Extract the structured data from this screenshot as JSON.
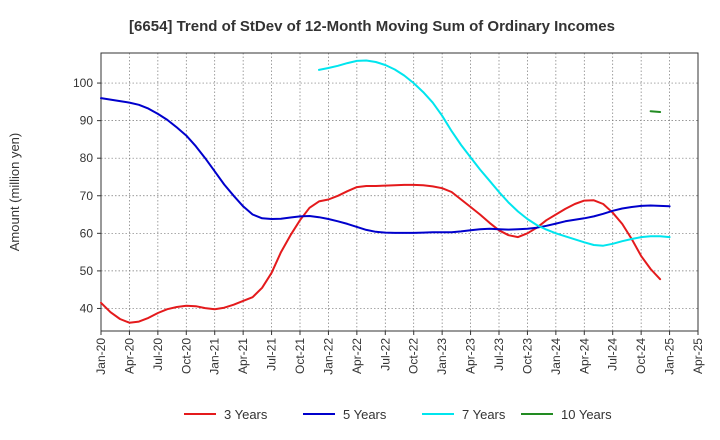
{
  "chart_data": {
    "type": "line",
    "title": "[6654]  Trend of StDev of 12-Month Moving Sum of Ordinary Incomes",
    "ylabel": "Amount (million yen)",
    "xlabel": "",
    "ylim": [
      34,
      108
    ],
    "yticks": [
      40,
      50,
      60,
      70,
      80,
      90,
      100
    ],
    "x_ticks": [
      "Jan-20",
      "Apr-20",
      "Jul-20",
      "Oct-20",
      "Jan-21",
      "Apr-21",
      "Jul-21",
      "Oct-21",
      "Jan-22",
      "Apr-22",
      "Jul-22",
      "Oct-22",
      "Jan-23",
      "Apr-23",
      "Jul-23",
      "Oct-23",
      "Jan-24",
      "Apr-24",
      "Jul-24",
      "Oct-24",
      "Jan-25",
      "Apr-25"
    ],
    "grid": true,
    "legend_position": "bottom",
    "series": [
      {
        "name": "3 Years",
        "color": "#e41a1c",
        "points": [
          [
            "Jan-20",
            41.5
          ],
          [
            "Feb-20",
            39.0
          ],
          [
            "Mar-20",
            37.2
          ],
          [
            "Apr-20",
            36.2
          ],
          [
            "May-20",
            36.5
          ],
          [
            "Jun-20",
            37.5
          ],
          [
            "Jul-20",
            38.8
          ],
          [
            "Aug-20",
            39.8
          ],
          [
            "Sep-20",
            40.4
          ],
          [
            "Oct-20",
            40.7
          ],
          [
            "Nov-20",
            40.6
          ],
          [
            "Dec-20",
            40.1
          ],
          [
            "Jan-21",
            39.8
          ],
          [
            "Feb-21",
            40.2
          ],
          [
            "Mar-21",
            41.0
          ],
          [
            "Apr-21",
            42.0
          ],
          [
            "May-21",
            43.0
          ],
          [
            "Jun-21",
            45.5
          ],
          [
            "Jul-21",
            49.5
          ],
          [
            "Aug-21",
            55.0
          ],
          [
            "Sep-21",
            59.5
          ],
          [
            "Oct-21",
            63.5
          ],
          [
            "Nov-21",
            66.8
          ],
          [
            "Dec-21",
            68.5
          ],
          [
            "Jan-22",
            69.0
          ],
          [
            "Feb-22",
            70.0
          ],
          [
            "Mar-22",
            71.2
          ],
          [
            "Apr-22",
            72.3
          ],
          [
            "May-22",
            72.6
          ],
          [
            "Jun-22",
            72.6
          ],
          [
            "Jul-22",
            72.7
          ],
          [
            "Aug-22",
            72.8
          ],
          [
            "Sep-22",
            72.9
          ],
          [
            "Oct-22",
            72.9
          ],
          [
            "Nov-22",
            72.8
          ],
          [
            "Dec-22",
            72.5
          ],
          [
            "Jan-23",
            72.0
          ],
          [
            "Feb-23",
            71.0
          ],
          [
            "Mar-23",
            69.0
          ],
          [
            "Apr-23",
            67.0
          ],
          [
            "May-23",
            65.0
          ],
          [
            "Jun-23",
            62.8
          ],
          [
            "Jul-23",
            60.8
          ],
          [
            "Aug-23",
            59.5
          ],
          [
            "Sep-23",
            59.0
          ],
          [
            "Oct-23",
            60.0
          ],
          [
            "Nov-23",
            61.5
          ],
          [
            "Dec-23",
            63.5
          ],
          [
            "Jan-24",
            65.0
          ],
          [
            "Feb-24",
            66.5
          ],
          [
            "Mar-24",
            67.8
          ],
          [
            "Apr-24",
            68.7
          ],
          [
            "May-24",
            68.8
          ],
          [
            "Jun-24",
            67.8
          ],
          [
            "Jul-24",
            65.5
          ],
          [
            "Aug-24",
            62.5
          ],
          [
            "Sep-24",
            58.5
          ],
          [
            "Oct-24",
            54.0
          ],
          [
            "Nov-24",
            50.5
          ],
          [
            "Dec-24",
            47.8
          ]
        ]
      },
      {
        "name": "5 Years",
        "color": "#0000cc",
        "points": [
          [
            "Jan-20",
            96.0
          ],
          [
            "Feb-20",
            95.6
          ],
          [
            "Mar-20",
            95.2
          ],
          [
            "Apr-20",
            94.8
          ],
          [
            "May-20",
            94.2
          ],
          [
            "Jun-20",
            93.2
          ],
          [
            "Jul-20",
            91.8
          ],
          [
            "Aug-20",
            90.2
          ],
          [
            "Sep-20",
            88.2
          ],
          [
            "Oct-20",
            86.0
          ],
          [
            "Nov-20",
            83.2
          ],
          [
            "Dec-20",
            80.0
          ],
          [
            "Jan-21",
            76.5
          ],
          [
            "Feb-21",
            73.0
          ],
          [
            "Mar-21",
            70.0
          ],
          [
            "Apr-21",
            67.2
          ],
          [
            "May-21",
            65.0
          ],
          [
            "Jun-21",
            64.0
          ],
          [
            "Jul-21",
            63.8
          ],
          [
            "Aug-21",
            63.9
          ],
          [
            "Sep-21",
            64.2
          ],
          [
            "Oct-21",
            64.5
          ],
          [
            "Nov-21",
            64.6
          ],
          [
            "Dec-21",
            64.3
          ],
          [
            "Jan-22",
            63.8
          ],
          [
            "Feb-22",
            63.2
          ],
          [
            "Mar-22",
            62.5
          ],
          [
            "Apr-22",
            61.7
          ],
          [
            "May-22",
            60.9
          ],
          [
            "Jun-22",
            60.4
          ],
          [
            "Jul-22",
            60.2
          ],
          [
            "Aug-22",
            60.1
          ],
          [
            "Sep-22",
            60.1
          ],
          [
            "Oct-22",
            60.1
          ],
          [
            "Nov-22",
            60.2
          ],
          [
            "Dec-22",
            60.3
          ],
          [
            "Jan-23",
            60.3
          ],
          [
            "Feb-23",
            60.3
          ],
          [
            "Mar-23",
            60.5
          ],
          [
            "Apr-23",
            60.8
          ],
          [
            "May-23",
            61.1
          ],
          [
            "Jun-23",
            61.2
          ],
          [
            "Jul-23",
            61.1
          ],
          [
            "Aug-23",
            61.0
          ],
          [
            "Sep-23",
            61.1
          ],
          [
            "Oct-23",
            61.2
          ],
          [
            "Nov-23",
            61.5
          ],
          [
            "Dec-23",
            62.0
          ],
          [
            "Jan-24",
            62.6
          ],
          [
            "Feb-24",
            63.2
          ],
          [
            "Mar-24",
            63.6
          ],
          [
            "Apr-24",
            64.0
          ],
          [
            "May-24",
            64.5
          ],
          [
            "Jun-24",
            65.2
          ],
          [
            "Jul-24",
            66.0
          ],
          [
            "Aug-24",
            66.6
          ],
          [
            "Sep-24",
            67.0
          ],
          [
            "Oct-24",
            67.3
          ],
          [
            "Nov-24",
            67.4
          ],
          [
            "Dec-24",
            67.3
          ],
          [
            "Jan-25",
            67.2
          ]
        ]
      },
      {
        "name": "7 Years",
        "color": "#00e5ee",
        "points": [
          [
            "Dec-21",
            103.5
          ],
          [
            "Jan-22",
            104.0
          ],
          [
            "Feb-22",
            104.6
          ],
          [
            "Mar-22",
            105.3
          ],
          [
            "Apr-22",
            105.9
          ],
          [
            "May-22",
            106.0
          ],
          [
            "Jun-22",
            105.6
          ],
          [
            "Jul-22",
            104.8
          ],
          [
            "Aug-22",
            103.6
          ],
          [
            "Sep-22",
            102.0
          ],
          [
            "Oct-22",
            100.0
          ],
          [
            "Nov-22",
            97.6
          ],
          [
            "Dec-22",
            94.8
          ],
          [
            "Jan-23",
            91.3
          ],
          [
            "Feb-23",
            87.2
          ],
          [
            "Mar-23",
            83.5
          ],
          [
            "Apr-23",
            80.2
          ],
          [
            "May-23",
            77.0
          ],
          [
            "Jun-23",
            74.0
          ],
          [
            "Jul-23",
            71.0
          ],
          [
            "Aug-23",
            68.2
          ],
          [
            "Sep-23",
            65.8
          ],
          [
            "Oct-23",
            63.8
          ],
          [
            "Nov-23",
            62.2
          ],
          [
            "Dec-23",
            61.0
          ],
          [
            "Jan-24",
            60.0
          ],
          [
            "Feb-24",
            59.2
          ],
          [
            "Mar-24",
            58.4
          ],
          [
            "Apr-24",
            57.6
          ],
          [
            "May-24",
            56.9
          ],
          [
            "Jun-24",
            56.7
          ],
          [
            "Jul-24",
            57.2
          ],
          [
            "Aug-24",
            57.9
          ],
          [
            "Sep-24",
            58.5
          ],
          [
            "Oct-24",
            59.0
          ],
          [
            "Nov-24",
            59.2
          ],
          [
            "Dec-24",
            59.2
          ],
          [
            "Jan-25",
            59.0
          ]
        ]
      },
      {
        "name": "10 Years",
        "color": "#228b22",
        "points": [
          [
            "Nov-24",
            92.5
          ],
          [
            "Dec-24",
            92.3
          ]
        ]
      }
    ]
  }
}
